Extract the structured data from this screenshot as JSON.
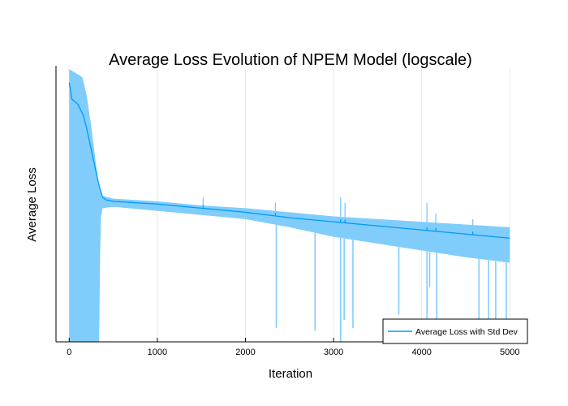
{
  "chart_data": {
    "type": "area",
    "title": "Average Loss Evolution of NPEM Model (logscale)",
    "xlabel": "Iteration",
    "ylabel": "Average Loss",
    "xlim": [
      -150,
      5200
    ],
    "xticks": [
      0,
      1000,
      2000,
      3000,
      4000,
      5000
    ],
    "xtick_labels": [
      "0",
      "1000",
      "2000",
      "3000",
      "4000",
      "5000"
    ],
    "yscale": "log",
    "yticks": [],
    "grid": true,
    "legend_position": "bottom-right",
    "colors": {
      "line": "#009af9",
      "band": "#80cdfc",
      "grid": "#e8e8e8"
    },
    "series": [
      {
        "name": "Average Loss with Std Dev",
        "kind": "mean_with_std_band",
        "mean": [
          [
            0,
            0.95
          ],
          [
            30,
            0.89
          ],
          [
            100,
            0.87
          ],
          [
            160,
            0.83
          ],
          [
            200,
            0.78
          ],
          [
            240,
            0.72
          ],
          [
            280,
            0.66
          ],
          [
            320,
            0.6
          ],
          [
            350,
            0.56
          ],
          [
            380,
            0.53
          ],
          [
            420,
            0.52
          ],
          [
            500,
            0.515
          ],
          [
            1000,
            0.505
          ],
          [
            1500,
            0.49
          ],
          [
            2000,
            0.475
          ],
          [
            2500,
            0.455
          ],
          [
            3000,
            0.44
          ],
          [
            3500,
            0.425
          ],
          [
            4000,
            0.41
          ],
          [
            4500,
            0.395
          ],
          [
            5000,
            0.38
          ]
        ],
        "upper": [
          [
            0,
            1.0
          ],
          [
            50,
            0.99
          ],
          [
            150,
            0.97
          ],
          [
            200,
            0.9
          ],
          [
            250,
            0.79
          ],
          [
            300,
            0.66
          ],
          [
            340,
            0.57
          ],
          [
            380,
            0.535
          ],
          [
            500,
            0.525
          ],
          [
            1000,
            0.515
          ],
          [
            1500,
            0.5
          ],
          [
            2000,
            0.49
          ],
          [
            2500,
            0.475
          ],
          [
            3000,
            0.46
          ],
          [
            3500,
            0.45
          ],
          [
            4000,
            0.44
          ],
          [
            4500,
            0.43
          ],
          [
            5000,
            0.42
          ]
        ],
        "lower": [
          [
            0,
            0.0
          ],
          [
            340,
            0.0
          ],
          [
            355,
            0.45
          ],
          [
            380,
            0.49
          ],
          [
            500,
            0.495
          ],
          [
            1000,
            0.48
          ],
          [
            1500,
            0.465
          ],
          [
            2000,
            0.45
          ],
          [
            2500,
            0.42
          ],
          [
            3000,
            0.385
          ],
          [
            3500,
            0.36
          ],
          [
            4000,
            0.335
          ],
          [
            4500,
            0.31
          ],
          [
            5000,
            0.29
          ]
        ],
        "downward_spikes": [
          [
            2350,
            0.05
          ],
          [
            2790,
            0.04
          ],
          [
            3080,
            0.0
          ],
          [
            3120,
            0.08
          ],
          [
            3220,
            0.05
          ],
          [
            3740,
            0.1
          ],
          [
            4060,
            0.0
          ],
          [
            4090,
            0.2
          ],
          [
            4170,
            0.05
          ],
          [
            4650,
            0.08
          ],
          [
            4760,
            0.0
          ],
          [
            4840,
            0.06
          ],
          [
            4960,
            0.02
          ]
        ],
        "upward_spikes": [
          [
            1520,
            0.53
          ],
          [
            2340,
            0.51
          ],
          [
            3080,
            0.53
          ],
          [
            3130,
            0.51
          ],
          [
            4060,
            0.51
          ],
          [
            4160,
            0.47
          ],
          [
            4580,
            0.45
          ]
        ]
      }
    ]
  }
}
